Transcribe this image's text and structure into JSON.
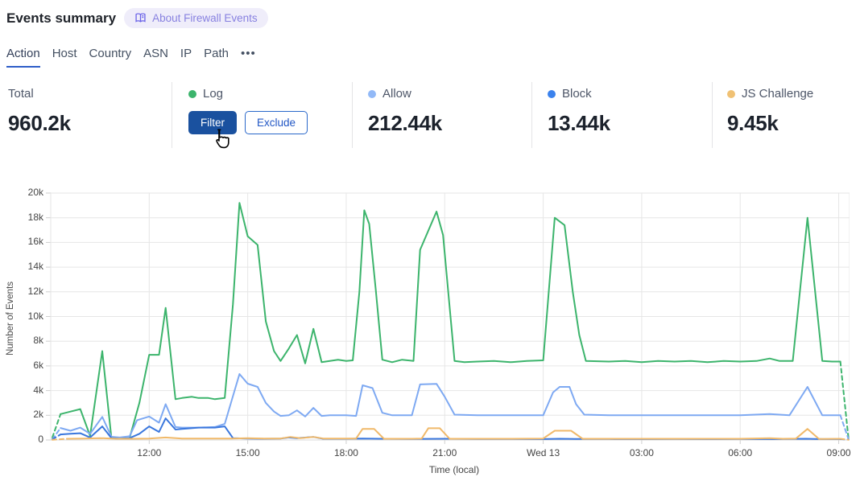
{
  "header": {
    "title": "Events summary",
    "about_badge": "About Firewall Events"
  },
  "tabs": {
    "items": [
      {
        "label": "Action",
        "active": true
      },
      {
        "label": "Host",
        "active": false
      },
      {
        "label": "Country",
        "active": false
      },
      {
        "label": "ASN",
        "active": false
      },
      {
        "label": "IP",
        "active": false
      },
      {
        "label": "Path",
        "active": false
      }
    ],
    "more": "•••"
  },
  "stats": {
    "total": {
      "label": "Total",
      "value": "960.2k"
    },
    "cards": [
      {
        "label": "Log",
        "color": "#3cb46c",
        "buttons": [
          "Filter",
          "Exclude"
        ]
      },
      {
        "label": "Allow",
        "color": "#92b9f7",
        "value": "212.44k"
      },
      {
        "label": "Block",
        "color": "#3b82ed",
        "value": "13.44k"
      },
      {
        "label": "JS Challenge",
        "color": "#f0c174",
        "value": "9.45k"
      }
    ]
  },
  "chart_data": {
    "type": "line",
    "xlabel": "Time (local)",
    "ylabel": "Number of Events",
    "value_unit": "thousands of events",
    "ylim_k": [
      0,
      20
    ],
    "y_ticks": [
      {
        "v": 0,
        "label": "0"
      },
      {
        "v": 2,
        "label": "2k"
      },
      {
        "v": 4,
        "label": "4k"
      },
      {
        "v": 6,
        "label": "6k"
      },
      {
        "v": 8,
        "label": "8k"
      },
      {
        "v": 10,
        "label": "10k"
      },
      {
        "v": 12,
        "label": "12k"
      },
      {
        "v": 14,
        "label": "14k"
      },
      {
        "v": 16,
        "label": "16k"
      },
      {
        "v": 18,
        "label": "18k"
      },
      {
        "v": 20,
        "label": "20k"
      }
    ],
    "x_domain_hours": [
      0,
      24.33
    ],
    "x_ticks": [
      {
        "t": 3,
        "label": "12:00"
      },
      {
        "t": 6,
        "label": "15:00"
      },
      {
        "t": 9,
        "label": "18:00"
      },
      {
        "t": 12,
        "label": "21:00"
      },
      {
        "t": 15,
        "label": "Wed 13"
      },
      {
        "t": 18,
        "label": "03:00"
      },
      {
        "t": 21,
        "label": "06:00"
      },
      {
        "t": 24,
        "label": "09:00"
      }
    ],
    "grid_color": "#e6e6e6",
    "axis_color": "#d8d8d8",
    "dashed_partial_ends": true,
    "series": [
      {
        "name": "Log",
        "color": "#3cb46c",
        "points": [
          [
            0.05,
            0.2
          ],
          [
            0.3,
            2.1
          ],
          [
            0.6,
            2.3
          ],
          [
            0.9,
            2.5
          ],
          [
            1.2,
            0.33
          ],
          [
            1.57,
            7.2
          ],
          [
            1.85,
            0.13
          ],
          [
            2.1,
            0.13
          ],
          [
            2.4,
            0.15
          ],
          [
            2.7,
            3.0
          ],
          [
            3.0,
            6.9
          ],
          [
            3.3,
            6.9
          ],
          [
            3.5,
            10.7
          ],
          [
            3.8,
            3.3
          ],
          [
            4.0,
            3.4
          ],
          [
            4.3,
            3.5
          ],
          [
            4.5,
            3.4
          ],
          [
            4.8,
            3.4
          ],
          [
            5.0,
            3.3
          ],
          [
            5.3,
            3.4
          ],
          [
            5.55,
            11.0
          ],
          [
            5.75,
            19.2
          ],
          [
            6.0,
            16.5
          ],
          [
            6.3,
            15.8
          ],
          [
            6.55,
            9.6
          ],
          [
            6.8,
            7.2
          ],
          [
            7.0,
            6.4
          ],
          [
            7.25,
            7.4
          ],
          [
            7.5,
            8.5
          ],
          [
            7.75,
            6.2
          ],
          [
            8.0,
            9.0
          ],
          [
            8.25,
            6.3
          ],
          [
            8.5,
            6.4
          ],
          [
            8.75,
            6.5
          ],
          [
            9.0,
            6.4
          ],
          [
            9.2,
            6.45
          ],
          [
            9.4,
            12.0
          ],
          [
            9.55,
            18.6
          ],
          [
            9.7,
            17.5
          ],
          [
            9.9,
            12.2
          ],
          [
            10.1,
            6.5
          ],
          [
            10.4,
            6.3
          ],
          [
            10.7,
            6.5
          ],
          [
            11.05,
            6.4
          ],
          [
            11.25,
            15.4
          ],
          [
            11.75,
            18.5
          ],
          [
            11.95,
            16.6
          ],
          [
            12.3,
            6.4
          ],
          [
            12.6,
            6.3
          ],
          [
            13.0,
            6.35
          ],
          [
            13.5,
            6.4
          ],
          [
            14.0,
            6.3
          ],
          [
            14.5,
            6.4
          ],
          [
            15.0,
            6.45
          ],
          [
            15.35,
            18.0
          ],
          [
            15.65,
            17.4
          ],
          [
            15.9,
            12.0
          ],
          [
            16.1,
            8.5
          ],
          [
            16.3,
            6.4
          ],
          [
            17.0,
            6.35
          ],
          [
            17.5,
            6.4
          ],
          [
            18.0,
            6.3
          ],
          [
            18.5,
            6.4
          ],
          [
            19.0,
            6.35
          ],
          [
            19.5,
            6.4
          ],
          [
            20.0,
            6.3
          ],
          [
            20.5,
            6.4
          ],
          [
            21.0,
            6.35
          ],
          [
            21.5,
            6.4
          ],
          [
            21.9,
            6.6
          ],
          [
            22.2,
            6.4
          ],
          [
            22.6,
            6.4
          ],
          [
            23.05,
            18.0
          ],
          [
            23.5,
            6.4
          ],
          [
            23.8,
            6.35
          ],
          [
            24.05,
            6.35
          ],
          [
            24.3,
            0.05
          ]
        ]
      },
      {
        "name": "Allow",
        "color": "#7ea9f2",
        "points": [
          [
            0.05,
            0.05
          ],
          [
            0.3,
            0.97
          ],
          [
            0.6,
            0.75
          ],
          [
            0.9,
            1.0
          ],
          [
            1.2,
            0.5
          ],
          [
            1.57,
            1.87
          ],
          [
            1.85,
            0.26
          ],
          [
            2.1,
            0.2
          ],
          [
            2.4,
            0.3
          ],
          [
            2.63,
            1.6
          ],
          [
            3.0,
            1.9
          ],
          [
            3.3,
            1.4
          ],
          [
            3.5,
            2.9
          ],
          [
            3.8,
            1.05
          ],
          [
            4.0,
            1.0
          ],
          [
            4.5,
            1.0
          ],
          [
            5.0,
            1.05
          ],
          [
            5.3,
            1.3
          ],
          [
            5.75,
            5.34
          ],
          [
            6.0,
            4.56
          ],
          [
            6.3,
            4.3
          ],
          [
            6.55,
            3.0
          ],
          [
            6.8,
            2.3
          ],
          [
            7.0,
            1.95
          ],
          [
            7.25,
            2.0
          ],
          [
            7.5,
            2.4
          ],
          [
            7.75,
            1.9
          ],
          [
            8.0,
            2.6
          ],
          [
            8.25,
            1.95
          ],
          [
            8.5,
            2.0
          ],
          [
            9.0,
            2.0
          ],
          [
            9.3,
            1.95
          ],
          [
            9.5,
            4.43
          ],
          [
            9.8,
            4.2
          ],
          [
            10.1,
            2.2
          ],
          [
            10.4,
            2.0
          ],
          [
            11.0,
            2.0
          ],
          [
            11.25,
            4.5
          ],
          [
            11.75,
            4.55
          ],
          [
            12.0,
            3.5
          ],
          [
            12.3,
            2.05
          ],
          [
            13.0,
            2.0
          ],
          [
            14.0,
            2.0
          ],
          [
            15.0,
            2.0
          ],
          [
            15.3,
            3.85
          ],
          [
            15.5,
            4.3
          ],
          [
            15.8,
            4.3
          ],
          [
            16.0,
            2.9
          ],
          [
            16.25,
            2.05
          ],
          [
            17.0,
            2.0
          ],
          [
            18.0,
            2.0
          ],
          [
            19.0,
            2.0
          ],
          [
            20.0,
            2.0
          ],
          [
            21.0,
            2.0
          ],
          [
            21.9,
            2.1
          ],
          [
            22.5,
            2.0
          ],
          [
            23.05,
            4.3
          ],
          [
            23.5,
            2.0
          ],
          [
            24.05,
            2.0
          ],
          [
            24.3,
            0.05
          ]
        ]
      },
      {
        "name": "Block",
        "color": "#3a77dd",
        "points": [
          [
            0.05,
            0.05
          ],
          [
            0.3,
            0.45
          ],
          [
            0.6,
            0.5
          ],
          [
            0.9,
            0.55
          ],
          [
            1.2,
            0.2
          ],
          [
            1.57,
            1.1
          ],
          [
            1.85,
            0.15
          ],
          [
            2.1,
            0.1
          ],
          [
            2.4,
            0.15
          ],
          [
            2.7,
            0.5
          ],
          [
            3.0,
            1.1
          ],
          [
            3.3,
            0.65
          ],
          [
            3.5,
            1.75
          ],
          [
            3.8,
            0.85
          ],
          [
            4.0,
            0.9
          ],
          [
            4.5,
            1.0
          ],
          [
            5.0,
            1.0
          ],
          [
            5.3,
            1.1
          ],
          [
            5.55,
            0.15
          ],
          [
            6.0,
            0.12
          ],
          [
            6.5,
            0.1
          ],
          [
            7.0,
            0.12
          ],
          [
            7.25,
            0.2
          ],
          [
            7.5,
            0.15
          ],
          [
            8.0,
            0.25
          ],
          [
            8.3,
            0.1
          ],
          [
            9.0,
            0.1
          ],
          [
            9.5,
            0.12
          ],
          [
            10.0,
            0.1
          ],
          [
            11.0,
            0.08
          ],
          [
            12.0,
            0.1
          ],
          [
            13.0,
            0.08
          ],
          [
            14.0,
            0.08
          ],
          [
            15.0,
            0.07
          ],
          [
            15.5,
            0.1
          ],
          [
            16.0,
            0.08
          ],
          [
            17.0,
            0.08
          ],
          [
            18.0,
            0.07
          ],
          [
            19.0,
            0.08
          ],
          [
            20.0,
            0.07
          ],
          [
            21.0,
            0.08
          ],
          [
            22.0,
            0.07
          ],
          [
            23.0,
            0.1
          ],
          [
            23.5,
            0.07
          ],
          [
            24.05,
            0.07
          ],
          [
            24.3,
            0.03
          ]
        ]
      },
      {
        "name": "JS Challenge",
        "color": "#f0b96a",
        "points": [
          [
            0.05,
            0.02
          ],
          [
            0.5,
            0.1
          ],
          [
            1.0,
            0.12
          ],
          [
            1.5,
            0.15
          ],
          [
            2.0,
            0.1
          ],
          [
            2.5,
            0.1
          ],
          [
            3.0,
            0.12
          ],
          [
            3.5,
            0.2
          ],
          [
            4.0,
            0.12
          ],
          [
            4.5,
            0.12
          ],
          [
            5.0,
            0.12
          ],
          [
            5.5,
            0.12
          ],
          [
            6.0,
            0.15
          ],
          [
            6.5,
            0.12
          ],
          [
            7.0,
            0.12
          ],
          [
            7.3,
            0.25
          ],
          [
            7.6,
            0.15
          ],
          [
            8.0,
            0.25
          ],
          [
            8.3,
            0.12
          ],
          [
            9.0,
            0.12
          ],
          [
            9.3,
            0.12
          ],
          [
            9.5,
            0.9
          ],
          [
            9.85,
            0.9
          ],
          [
            10.15,
            0.1
          ],
          [
            11.0,
            0.1
          ],
          [
            11.3,
            0.12
          ],
          [
            11.5,
            0.95
          ],
          [
            11.85,
            0.95
          ],
          [
            12.15,
            0.1
          ],
          [
            13.0,
            0.1
          ],
          [
            14.0,
            0.1
          ],
          [
            15.0,
            0.12
          ],
          [
            15.35,
            0.75
          ],
          [
            15.85,
            0.75
          ],
          [
            16.2,
            0.1
          ],
          [
            17.0,
            0.1
          ],
          [
            18.0,
            0.1
          ],
          [
            19.0,
            0.1
          ],
          [
            20.0,
            0.1
          ],
          [
            21.0,
            0.1
          ],
          [
            21.9,
            0.15
          ],
          [
            22.3,
            0.1
          ],
          [
            22.7,
            0.12
          ],
          [
            23.05,
            0.9
          ],
          [
            23.4,
            0.08
          ],
          [
            24.05,
            0.1
          ],
          [
            24.3,
            0.02
          ]
        ]
      }
    ]
  }
}
